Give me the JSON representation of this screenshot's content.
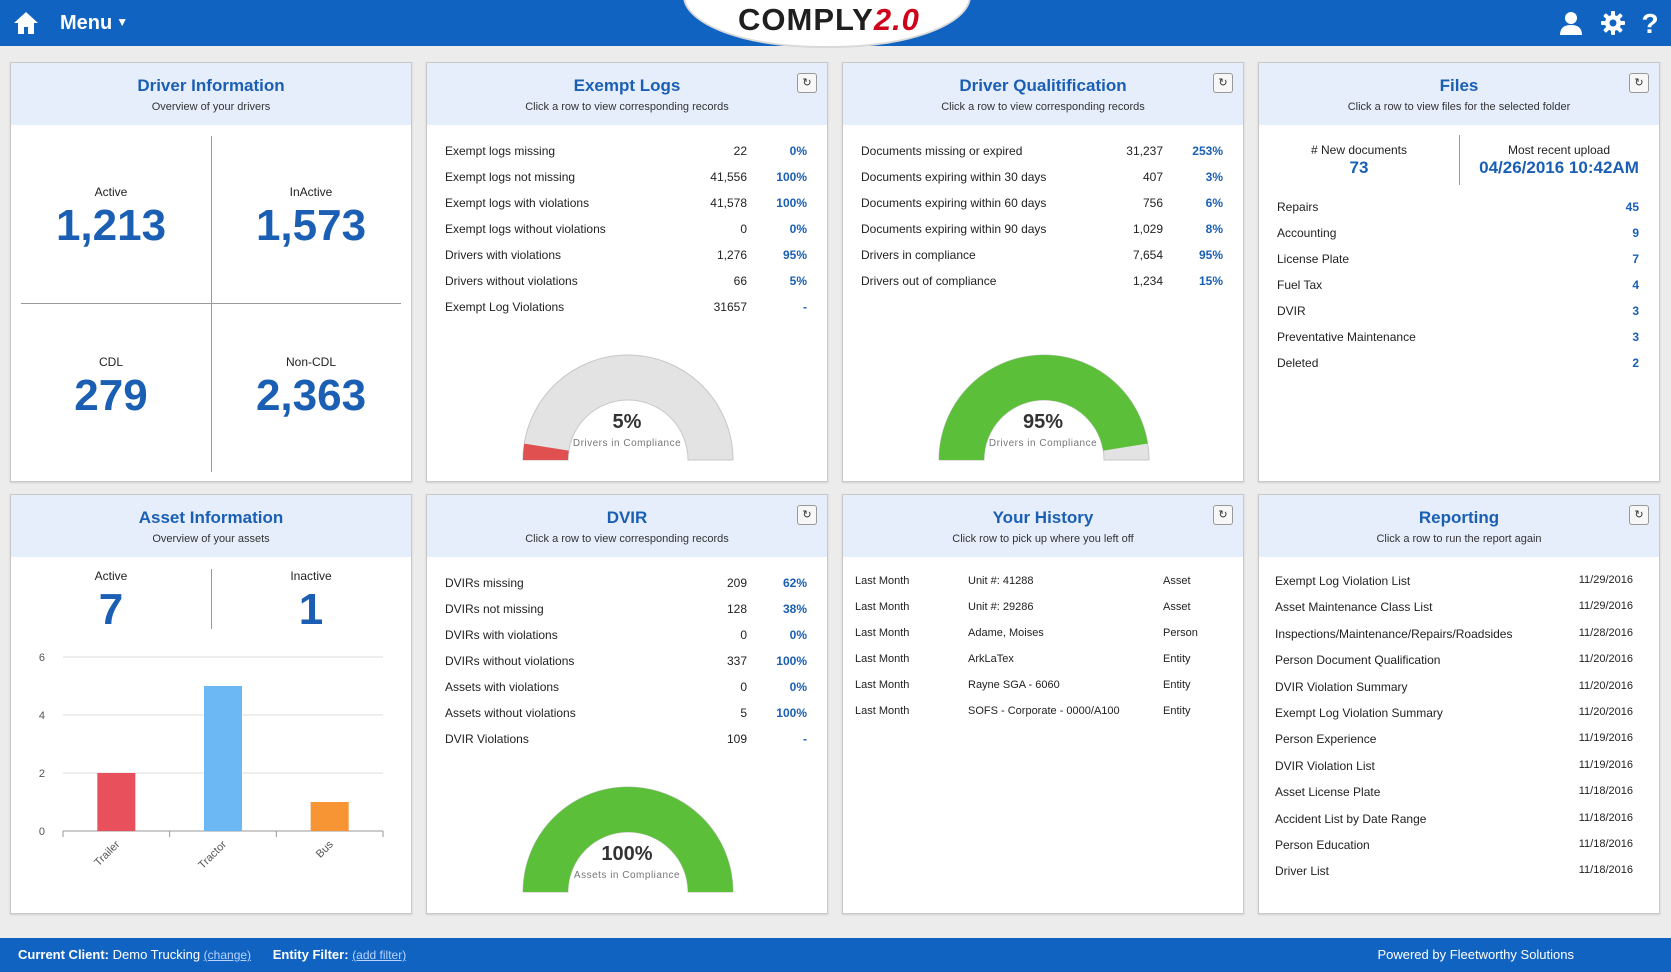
{
  "header": {
    "menu_label": "Menu",
    "logo_text_a": "COMPLY",
    "logo_text_b": "2.0",
    "icons": [
      "home-icon",
      "user-icon",
      "gear-icon",
      "help-icon"
    ]
  },
  "driver_info": {
    "title": "Driver Information",
    "subtitle": "Overview of your drivers",
    "active_label": "Active",
    "active_value": "1,213",
    "inactive_label": "InActive",
    "inactive_value": "1,573",
    "cdl_label": "CDL",
    "cdl_value": "279",
    "noncdl_label": "Non-CDL",
    "noncdl_value": "2,363"
  },
  "exempt_logs": {
    "title": "Exempt Logs",
    "subtitle": "Click a row to view corresponding records",
    "rows": [
      {
        "label": "Exempt logs missing",
        "num": "22",
        "pct": "0%"
      },
      {
        "label": "Exempt logs not missing",
        "num": "41,556",
        "pct": "100%"
      },
      {
        "label": "Exempt logs with violations",
        "num": "41,578",
        "pct": "100%"
      },
      {
        "label": "Exempt logs without violations",
        "num": "0",
        "pct": "0%"
      },
      {
        "label": "Drivers with violations",
        "num": "1,276",
        "pct": "95%"
      },
      {
        "label": "Drivers without violations",
        "num": "66",
        "pct": "5%"
      },
      {
        "label": "Exempt Log Violations",
        "num": "31657",
        "pct": "-"
      }
    ],
    "gauge_value": "5%",
    "gauge_fraction": 0.05,
    "gauge_label": "Drivers in Compliance",
    "gauge_color": "#e05050"
  },
  "driver_qual": {
    "title": "Driver Qualitification",
    "subtitle": "Click a row to view corresponding records",
    "rows": [
      {
        "label": "Documents missing or expired",
        "num": "31,237",
        "pct": "253%"
      },
      {
        "label": "Documents expiring within 30 days",
        "num": "407",
        "pct": "3%"
      },
      {
        "label": "Documents expiring within 60 days",
        "num": "756",
        "pct": "6%"
      },
      {
        "label": "Documents expiring within 90 days",
        "num": "1,029",
        "pct": "8%"
      },
      {
        "label": "Drivers in compliance",
        "num": "7,654",
        "pct": "95%"
      },
      {
        "label": "Drivers out of compliance",
        "num": "1,234",
        "pct": "15%"
      }
    ],
    "gauge_value": "95%",
    "gauge_fraction": 0.95,
    "gauge_label": "Drivers in Compliance",
    "gauge_color": "#5cbf3a"
  },
  "files": {
    "title": "Files",
    "subtitle": "Click a row to view files for the selected folder",
    "new_docs_label": "# New documents",
    "new_docs_value": "73",
    "recent_label": "Most recent upload",
    "recent_value": "04/26/2016 10:42AM",
    "rows": [
      {
        "label": "Repairs",
        "count": "45"
      },
      {
        "label": "Accounting",
        "count": "9"
      },
      {
        "label": "License Plate",
        "count": "7"
      },
      {
        "label": "Fuel Tax",
        "count": "4"
      },
      {
        "label": "DVIR",
        "count": "3"
      },
      {
        "label": "Preventative Maintenance",
        "count": "3"
      },
      {
        "label": "Deleted",
        "count": "2"
      }
    ]
  },
  "asset_info": {
    "title": "Asset Information",
    "subtitle": "Overview of your assets",
    "active_label": "Active",
    "active_value": "7",
    "inactive_label": "Inactive",
    "inactive_value": "1"
  },
  "chart_data": {
    "type": "bar",
    "categories": [
      "Trailer",
      "Tractor",
      "Bus"
    ],
    "values": [
      2,
      5,
      1
    ],
    "colors": [
      "#e8505b",
      "#6cb8f5",
      "#f79433"
    ],
    "ylim": [
      0,
      6
    ],
    "yticks": [
      "0",
      "2",
      "4",
      "6"
    ],
    "grid": true,
    "title": "",
    "xlabel": "",
    "ylabel": ""
  },
  "dvir": {
    "title": "DVIR",
    "subtitle": "Click a row to view corresponding records",
    "rows": [
      {
        "label": "DVIRs missing",
        "num": "209",
        "pct": "62%"
      },
      {
        "label": "DVIRs not missing",
        "num": "128",
        "pct": "38%"
      },
      {
        "label": "DVIRs with violations",
        "num": "0",
        "pct": "0%"
      },
      {
        "label": "DVIRs without violations",
        "num": "337",
        "pct": "100%"
      },
      {
        "label": "Assets with violations",
        "num": "0",
        "pct": "0%"
      },
      {
        "label": "Assets without violations",
        "num": "5",
        "pct": "100%"
      },
      {
        "label": "DVIR Violations",
        "num": "109",
        "pct": "-"
      }
    ],
    "gauge_value": "100%",
    "gauge_fraction": 1.0,
    "gauge_label": "Assets in Compliance",
    "gauge_color": "#5cbf3a"
  },
  "history": {
    "title": "Your History",
    "subtitle": "Click row to pick up where you left off",
    "rows": [
      {
        "when": "Last Month",
        "item": "Unit #: 41288",
        "type": "Asset"
      },
      {
        "when": "Last Month",
        "item": "Unit #: 29286",
        "type": "Asset"
      },
      {
        "when": "Last Month",
        "item": "Adame, Moises",
        "type": "Person"
      },
      {
        "when": "Last Month",
        "item": "ArkLaTex",
        "type": "Entity"
      },
      {
        "when": "Last Month",
        "item": "Rayne SGA - 6060",
        "type": "Entity"
      },
      {
        "when": "Last Month",
        "item": "SOFS - Corporate - 0000/A100",
        "type": "Entity"
      }
    ]
  },
  "reporting": {
    "title": "Reporting",
    "subtitle": "Click a row to run the report again",
    "rows": [
      {
        "label": "Exempt Log Violation List",
        "date": "11/29/2016"
      },
      {
        "label": "Asset Maintenance Class List",
        "date": "11/29/2016"
      },
      {
        "label": "Inspections/Maintenance/Repairs/Roadsides",
        "date": "11/28/2016"
      },
      {
        "label": "Person Document Qualification",
        "date": "11/20/2016"
      },
      {
        "label": "DVIR Violation Summary",
        "date": "11/20/2016"
      },
      {
        "label": "Exempt Log Violation Summary",
        "date": "11/20/2016"
      },
      {
        "label": "Person Experience",
        "date": "11/19/2016"
      },
      {
        "label": "DVIR Violation List",
        "date": "11/19/2016"
      },
      {
        "label": "Asset License Plate",
        "date": "11/18/2016"
      },
      {
        "label": "Accident List by Date Range",
        "date": "11/18/2016"
      },
      {
        "label": "Person Education",
        "date": "11/18/2016"
      },
      {
        "label": "Driver List",
        "date": "11/18/2016"
      }
    ]
  },
  "footer": {
    "client_label": "Current Client:",
    "client_value": "Demo Trucking",
    "change_link": "(change)",
    "filter_label": "Entity Filter:",
    "filter_link": "(add filter)",
    "powered_by": "Powered by Fleetworthy Solutions"
  },
  "refresh_glyph": "↻"
}
